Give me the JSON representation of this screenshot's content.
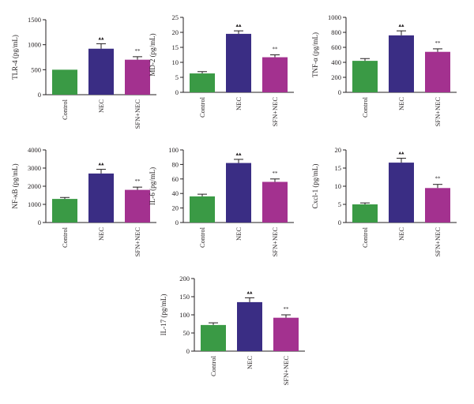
{
  "colors": {
    "control": "#3a9a45",
    "nec": "#3a2d84",
    "sfn_nec": "#a3318f",
    "axis": "#231f20"
  },
  "markers": {
    "nec": "▴▴",
    "sfn_nec": "**"
  },
  "chart_data": [
    {
      "type": "bar",
      "ylabel": "TLR-4 (pg/mL)",
      "categories": [
        "Control",
        "NEC",
        "SFN+NEC"
      ],
      "values": [
        500,
        920,
        700
      ],
      "errors": [
        0,
        100,
        60
      ],
      "ylim": [
        0,
        1500
      ],
      "yticks": [
        0,
        500,
        1000,
        1500
      ],
      "ytick_labels": [
        "0",
        "500",
        "1000",
        "1500"
      ]
    },
    {
      "type": "bar",
      "ylabel": "MD-2 (pg/mL)",
      "categories": [
        "Control",
        "NEC",
        "SFN+NEC"
      ],
      "values": [
        6.3,
        19.5,
        11.7
      ],
      "errors": [
        0.6,
        1.0,
        0.8
      ],
      "ylim": [
        0,
        25
      ],
      "yticks": [
        0,
        5,
        10,
        15,
        20,
        25
      ],
      "ytick_labels": [
        "0",
        "5",
        "10",
        "15",
        "20",
        "25"
      ]
    },
    {
      "type": "bar",
      "ylabel": "TNF-α (pg/mL)",
      "categories": [
        "Control",
        "NEC",
        "SFN+NEC"
      ],
      "values": [
        420,
        760,
        540
      ],
      "errors": [
        30,
        60,
        40
      ],
      "ylim": [
        0,
        1000
      ],
      "yticks": [
        0,
        200,
        400,
        600,
        800,
        1000
      ],
      "ytick_labels": [
        "0",
        "200",
        "400",
        "600",
        "800",
        "1000"
      ]
    },
    {
      "type": "bar",
      "ylabel": "NF-κB (pg/mL)",
      "categories": [
        "Control",
        "NEC",
        "SFN+NEC"
      ],
      "values": [
        1300,
        2700,
        1800
      ],
      "errors": [
        80,
        230,
        150
      ],
      "ylim": [
        0,
        4000
      ],
      "yticks": [
        0,
        1000,
        2000,
        3000,
        4000
      ],
      "ytick_labels": [
        "0",
        "1000",
        "2000",
        "3000",
        "4000"
      ]
    },
    {
      "type": "bar",
      "ylabel": "IL-6 (pg/mL)",
      "categories": [
        "Control",
        "NEC",
        "SFN+NEC"
      ],
      "values": [
        36,
        82,
        56
      ],
      "errors": [
        3,
        5,
        4
      ],
      "ylim": [
        0,
        100
      ],
      "yticks": [
        0,
        20,
        40,
        60,
        80,
        100
      ],
      "ytick_labels": [
        "0",
        "20",
        "40",
        "60",
        "80",
        "100"
      ]
    },
    {
      "type": "bar",
      "ylabel": "Cxcl-1 (pg/mL)",
      "categories": [
        "Control",
        "NEC",
        "SFN+NEC"
      ],
      "values": [
        5.0,
        16.5,
        9.5
      ],
      "errors": [
        0.4,
        1.2,
        1.0
      ],
      "ylim": [
        0,
        20
      ],
      "yticks": [
        0,
        5,
        10,
        15,
        20
      ],
      "ytick_labels": [
        "0",
        "5",
        "10",
        "15",
        "20"
      ]
    },
    {
      "type": "bar",
      "ylabel": "IL-17 (pg/mL)",
      "categories": [
        "Control",
        "NEC",
        "SFN+NEC"
      ],
      "values": [
        72,
        135,
        92
      ],
      "errors": [
        6,
        12,
        8
      ],
      "ylim": [
        0,
        200
      ],
      "yticks": [
        0,
        50,
        100,
        150,
        200
      ],
      "ytick_labels": [
        "0",
        "50",
        "100",
        "150",
        "200"
      ]
    }
  ]
}
